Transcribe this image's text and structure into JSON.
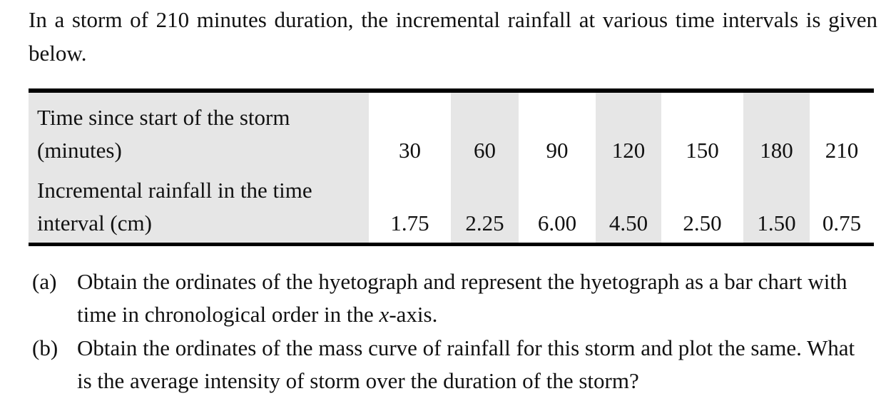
{
  "intro": "In a storm of 210 minutes duration, the incremental rainfall at various time intervals is given below.",
  "table": {
    "rows": [
      {
        "label": "Time since start of the storm (minutes)",
        "cells": [
          "30",
          "60",
          "90",
          "120",
          "150",
          "180",
          "210"
        ]
      },
      {
        "label": "Incremental rainfall in the time interval (cm)",
        "cells": [
          "1.75",
          "2.25",
          "6.00",
          "4.50",
          "2.50",
          "1.50",
          "0.75"
        ]
      }
    ]
  },
  "questions": [
    {
      "label": "(a)",
      "parts": [
        "Obtain the ordinates of the hyetograph and represent the hyetograph as a bar chart with time in chronological order in the ",
        "x",
        "-axis."
      ]
    },
    {
      "label": "(b)",
      "parts": [
        "Obtain the ordinates of the mass curve of rainfall for this storm and plot the same. What is the average intensity of storm over the duration of the storm?"
      ]
    }
  ]
}
